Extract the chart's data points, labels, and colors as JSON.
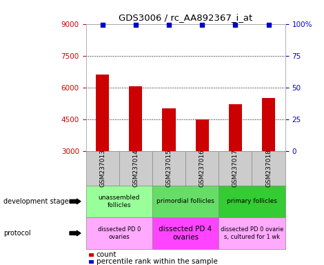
{
  "title": "GDS3006 / rc_AA892367_i_at",
  "samples": [
    "GSM237013",
    "GSM237014",
    "GSM237015",
    "GSM237016",
    "GSM237017",
    "GSM237018"
  ],
  "counts": [
    6600,
    6050,
    5000,
    4500,
    5200,
    5500
  ],
  "percentile_ranks": [
    99,
    99,
    99,
    99,
    99,
    99
  ],
  "ylim_left": [
    3000,
    9000
  ],
  "ylim_right": [
    0,
    100
  ],
  "yticks_left": [
    3000,
    4500,
    6000,
    7500,
    9000
  ],
  "yticks_right": [
    0,
    25,
    50,
    75,
    100
  ],
  "bar_color": "#cc0000",
  "dot_color": "#0000cc",
  "dev_stage_groups": [
    {
      "label": "unassembled\nfollicles",
      "start": 0,
      "end": 2,
      "color": "#99ff99"
    },
    {
      "label": "primordial follicles",
      "start": 2,
      "end": 4,
      "color": "#66dd66"
    },
    {
      "label": "primary follicles",
      "start": 4,
      "end": 6,
      "color": "#33cc33"
    }
  ],
  "protocol_groups": [
    {
      "label": "dissected PD 0\novaries",
      "start": 0,
      "end": 2,
      "color": "#ffaaff"
    },
    {
      "label": "dissected PD 4\novaries",
      "start": 2,
      "end": 4,
      "color": "#ff44ff"
    },
    {
      "label": "dissected PD 0 ovarie\ns, cultured for 1 wk",
      "start": 4,
      "end": 6,
      "color": "#ffaaff"
    }
  ],
  "left_axis_color": "#cc0000",
  "right_axis_color": "#0000cc",
  "dot_size": 5,
  "bar_width": 0.4
}
